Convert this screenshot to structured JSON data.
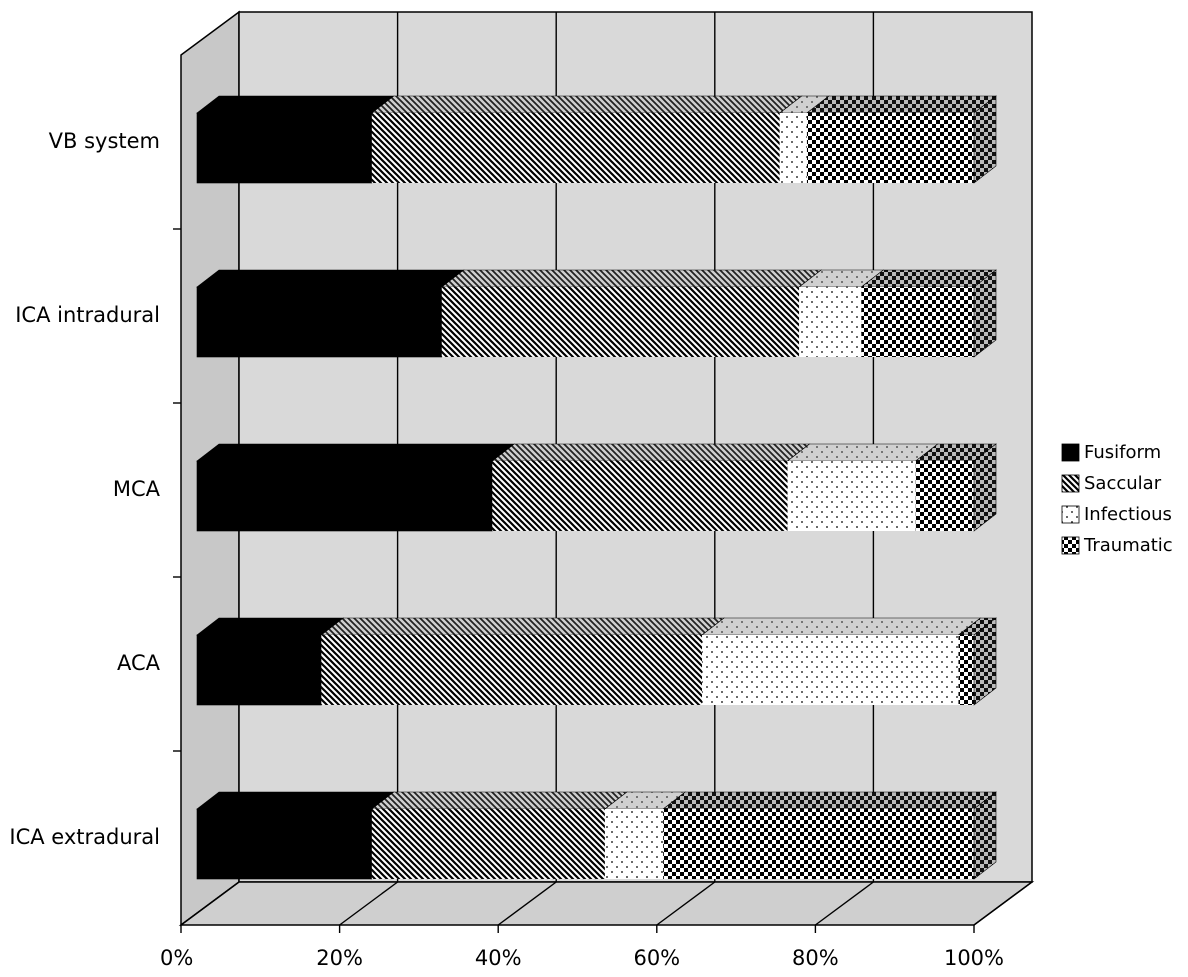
{
  "chart_data": {
    "type": "bar",
    "orientation": "horizontal",
    "stacked": "percent",
    "style": "3d",
    "categories": [
      "VB system",
      "ICA intradural",
      "MCA",
      "ACA",
      "ICA extradural"
    ],
    "series": [
      {
        "name": "Fusiform",
        "values": [
          22.5,
          31.5,
          38.0,
          16.0,
          22.5
        ]
      },
      {
        "name": "Saccular",
        "values": [
          52.5,
          46.0,
          38.0,
          49.0,
          30.0
        ]
      },
      {
        "name": "Infectious",
        "values": [
          3.5,
          8.0,
          16.5,
          33.0,
          7.5
        ]
      },
      {
        "name": "Traumatic",
        "values": [
          21.5,
          14.5,
          7.5,
          2.0,
          40.0
        ]
      }
    ],
    "x_ticks": [
      "0%",
      "20%",
      "40%",
      "60%",
      "80%",
      "100%"
    ],
    "xlim": [
      0,
      100
    ],
    "grid": true,
    "legend_position": "right",
    "colors": {
      "wall": "#d8d8d8",
      "floor": "#cfcfcf",
      "fusiform": "#000000"
    }
  }
}
